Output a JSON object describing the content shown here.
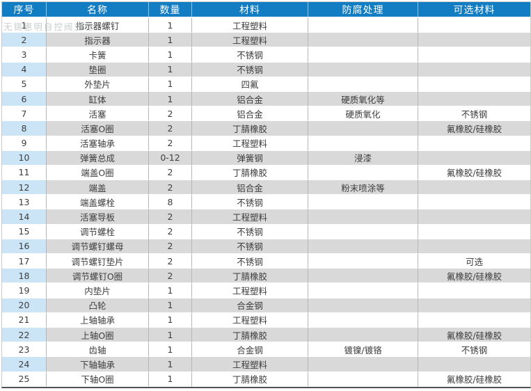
{
  "watermark": "无锡惠明自控阀业有",
  "colors": {
    "header_bg": "#127dc2",
    "header_text": "#ffffff",
    "shaded_row_bg": "#d9d9d9",
    "shaded_index_bg": "#cbe5f6",
    "body_text": "#3d3d3d",
    "bottom_border": "#4f5052"
  },
  "table": {
    "columns": [
      {
        "label": "序号"
      },
      {
        "label": "名称"
      },
      {
        "label": "数量"
      },
      {
        "label": "材料"
      },
      {
        "label": "防腐处理"
      },
      {
        "label": "可选材料"
      }
    ],
    "rows": [
      [
        "1",
        "指示器螺钉",
        "1",
        "工程塑料",
        "",
        ""
      ],
      [
        "2",
        "指示器",
        "1",
        "工程塑料",
        "",
        ""
      ],
      [
        "3",
        "卡簧",
        "1",
        "不锈钢",
        "",
        ""
      ],
      [
        "4",
        "垫圈",
        "1",
        "不锈钢",
        "",
        ""
      ],
      [
        "5",
        "外垫片",
        "1",
        "四氟",
        "",
        ""
      ],
      [
        "6",
        "缸体",
        "1",
        "铝合金",
        "硬质氧化等",
        ""
      ],
      [
        "7",
        "活塞",
        "2",
        "铝合金",
        "硬质氧化",
        "不锈钢"
      ],
      [
        "8",
        "活塞O圈",
        "2",
        "丁腈橡胶",
        "",
        "氟橡胶/硅橡胶"
      ],
      [
        "9",
        "活塞轴承",
        "2",
        "工程塑料",
        "",
        ""
      ],
      [
        "10",
        "弹簧总成",
        "0-12",
        "弹簧钢",
        "浸漆",
        ""
      ],
      [
        "11",
        "端盖O圈",
        "2",
        "丁腈橡胶",
        "",
        "氟橡胶/硅橡胶"
      ],
      [
        "12",
        "端盖",
        "2",
        "铝合金",
        "粉末喷涂等",
        ""
      ],
      [
        "13",
        "端盖螺栓",
        "8",
        "不锈钢",
        "",
        ""
      ],
      [
        "14",
        "活塞导板",
        "2",
        "工程塑料",
        "",
        ""
      ],
      [
        "15",
        "调节螺栓",
        "2",
        "不锈钢",
        "",
        ""
      ],
      [
        "16",
        "调节螺钉螺母",
        "2",
        "不锈钢",
        "",
        ""
      ],
      [
        "17",
        "调节螺钉垫片",
        "2",
        "不锈钢",
        "",
        "可选"
      ],
      [
        "18",
        "调节螺钉O圈",
        "2",
        "丁腈橡胶",
        "",
        "氟橡胶/硅橡胶"
      ],
      [
        "19",
        "内垫片",
        "1",
        "工程塑料",
        "",
        ""
      ],
      [
        "20",
        "凸轮",
        "1",
        "合金钢",
        "",
        ""
      ],
      [
        "21",
        "上轴轴承",
        "1",
        "工程塑料",
        "",
        ""
      ],
      [
        "22",
        "上轴O圈",
        "1",
        "丁腈橡胶",
        "",
        "氟橡胶/硅橡胶"
      ],
      [
        "23",
        "齿轴",
        "1",
        "合金钢",
        "镀镍/镀铬",
        "不锈钢"
      ],
      [
        "24",
        "下轴轴承",
        "1",
        "工程塑料",
        "",
        ""
      ],
      [
        "25",
        "下轴O圈",
        "1",
        "丁腈橡胶",
        "",
        "氟橡胶/硅橡胶"
      ]
    ]
  }
}
